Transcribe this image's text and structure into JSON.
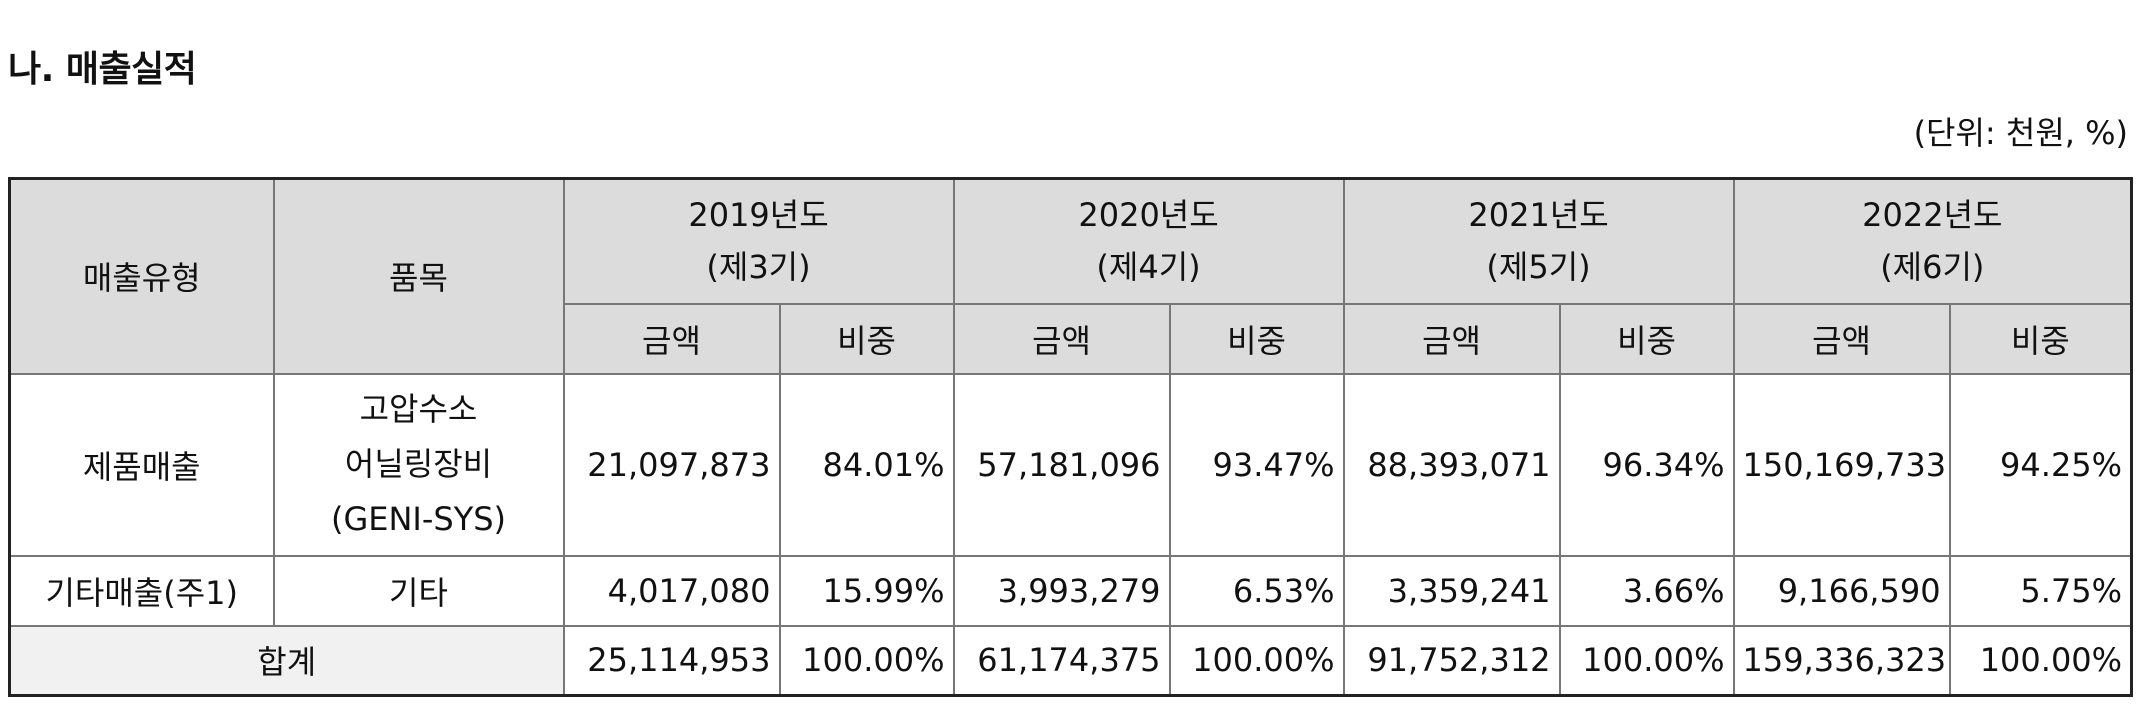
{
  "section_title": "나. 매출실적",
  "unit_note": "(단위: 천원, %)",
  "table": {
    "col_type": "매출유형",
    "col_item": "품목",
    "amount_label": "금액",
    "ratio_label": "비중",
    "years": [
      {
        "year": "2019년도",
        "period": "(제3기)"
      },
      {
        "year": "2020년도",
        "period": "(제4기)"
      },
      {
        "year": "2021년도",
        "period": "(제5기)"
      },
      {
        "year": "2022년도",
        "period": "(제6기)"
      }
    ],
    "rows": [
      {
        "type": "제품매출",
        "item_lines": [
          "고압수소",
          "어닐링장비",
          "(GENI-SYS)"
        ],
        "cells": [
          {
            "amount": "21,097,873",
            "ratio": "84.01%"
          },
          {
            "amount": "57,181,096",
            "ratio": "93.47%"
          },
          {
            "amount": "88,393,071",
            "ratio": "96.34%"
          },
          {
            "amount": "150,169,733",
            "ratio": "94.25%"
          }
        ]
      },
      {
        "type": "기타매출(주1)",
        "item_lines": [
          "기타"
        ],
        "cells": [
          {
            "amount": "4,017,080",
            "ratio": "15.99%"
          },
          {
            "amount": "3,993,279",
            "ratio": "6.53%"
          },
          {
            "amount": "3,359,241",
            "ratio": "3.66%"
          },
          {
            "amount": "9,166,590",
            "ratio": "5.75%"
          }
        ]
      }
    ],
    "total": {
      "label": "합계",
      "cells": [
        {
          "amount": "25,114,953",
          "ratio": "100.00%"
        },
        {
          "amount": "61,174,375",
          "ratio": "100.00%"
        },
        {
          "amount": "91,752,312",
          "ratio": "100.00%"
        },
        {
          "amount": "159,336,323",
          "ratio": "100.00%"
        }
      ]
    }
  }
}
